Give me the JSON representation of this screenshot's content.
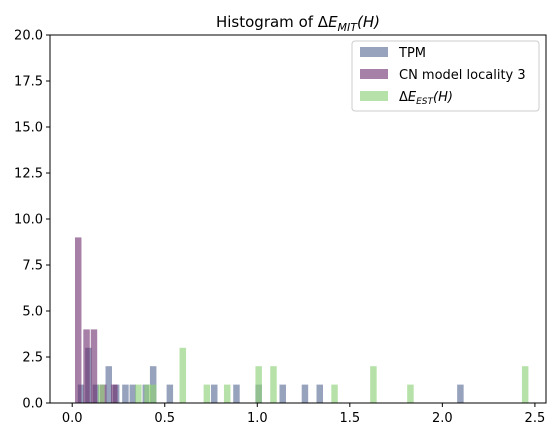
{
  "chart_data": {
    "type": "bar",
    "title": "Histogram of ΔE_MIT(H)",
    "title_parts": {
      "prefix": "Histogram of ",
      "delta": "Δ",
      "e": "E",
      "sub": "MIT",
      "arg": "(H)"
    },
    "xlabel": "",
    "ylabel": "",
    "xlim": [
      -0.12,
      2.56
    ],
    "ylim": [
      0,
      20
    ],
    "grid": false,
    "legend_position": "top-right",
    "bin_width": 0.035,
    "x_ticks": [
      {
        "value": 0.0,
        "label": "0.0"
      },
      {
        "value": 0.5,
        "label": "0.5"
      },
      {
        "value": 1.0,
        "label": "1.0"
      },
      {
        "value": 1.5,
        "label": "1.5"
      },
      {
        "value": 2.0,
        "label": "2.0"
      },
      {
        "value": 2.5,
        "label": "2.5"
      }
    ],
    "y_ticks": [
      {
        "value": 0,
        "label": "0.0"
      },
      {
        "value": 2.5,
        "label": "2.5"
      },
      {
        "value": 5,
        "label": "5.0"
      },
      {
        "value": 7.5,
        "label": "7.5"
      },
      {
        "value": 10,
        "label": "10.0"
      },
      {
        "value": 12.5,
        "label": "12.5"
      },
      {
        "value": 15,
        "label": "15.0"
      },
      {
        "value": 17.5,
        "label": "17.5"
      },
      {
        "value": 20,
        "label": "20.0"
      }
    ],
    "series": [
      {
        "name": "TPM",
        "color": "#6b7aa1",
        "opacity": 0.7,
        "bin_starts": [
          0.03,
          0.07,
          0.11,
          0.18,
          0.22,
          0.27,
          0.31,
          0.38,
          0.42,
          0.51,
          0.75,
          0.87,
          0.99,
          1.12,
          1.24,
          1.32,
          2.08
        ],
        "counts": [
          1,
          3,
          1,
          2,
          1,
          1,
          1,
          1,
          2,
          1,
          1,
          1,
          1,
          1,
          1,
          1,
          1
        ]
      },
      {
        "name": "CN model locality 3",
        "color": "#6a2b6a",
        "opacity": 0.6,
        "bin_starts": [
          0.015,
          0.06,
          0.1,
          0.15,
          0.21
        ],
        "counts": [
          9,
          4,
          4,
          1,
          1
        ]
      },
      {
        "name": "ΔE_EST(H)",
        "name_parts": {
          "delta": "Δ",
          "e": "E",
          "sub": "EST",
          "arg": "(H)"
        },
        "color": "#8fd17a",
        "opacity": 0.65,
        "bin_starts": [
          0.14,
          0.34,
          0.39,
          0.42,
          0.58,
          0.71,
          0.82,
          0.99,
          1.07,
          1.4,
          1.61,
          1.81,
          2.43
        ],
        "counts": [
          1,
          1,
          1,
          1,
          3,
          1,
          1,
          2,
          2,
          1,
          2,
          1,
          2
        ]
      }
    ]
  }
}
